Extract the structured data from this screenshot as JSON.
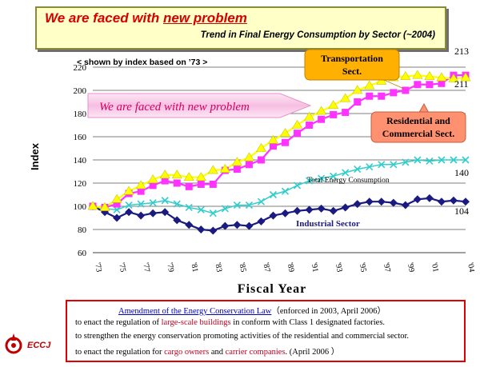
{
  "header": {
    "title_prefix": "We are faced with ",
    "title_underlined": "new problem",
    "subtitle": "Trend in Final Energy Consumption by Sector  (~2004)"
  },
  "chart_data": {
    "type": "line",
    "note": "< shown by index based on ’73 >",
    "xlabel": "Fiscal Year",
    "ylabel": "Index",
    "ylim": [
      60,
      220
    ],
    "yticks": [
      60,
      80,
      100,
      120,
      140,
      160,
      180,
      200,
      220
    ],
    "x": [
      1973,
      1974,
      1975,
      1976,
      1977,
      1978,
      1979,
      1980,
      1981,
      1982,
      1983,
      1984,
      1985,
      1986,
      1987,
      1988,
      1989,
      1990,
      1991,
      1992,
      1993,
      1994,
      1995,
      1996,
      1997,
      1998,
      1999,
      2000,
      2001,
      2002,
      2003,
      2004
    ],
    "xticks": [
      "'73",
      "'75",
      "'77",
      "'79",
      "'81",
      "'83",
      "'85",
      "'87",
      "'89",
      "'91",
      "'93",
      "'95",
      "'97",
      "'99",
      "'01",
      "'04"
    ],
    "grid": true,
    "series": [
      {
        "name": "Transportation Sect.",
        "color": "#ffff00",
        "marker": "triangle",
        "values": [
          100,
          99,
          106,
          113,
          118,
          123,
          127,
          127,
          125,
          125,
          131,
          132,
          138,
          142,
          150,
          157,
          163,
          170,
          177,
          182,
          187,
          193,
          200,
          204,
          208,
          211,
          212,
          213,
          212,
          211,
          210,
          211
        ]
      },
      {
        "name": "Residential and Commercial Sect.",
        "color": "#ff33ff",
        "marker": "square",
        "values": [
          100,
          99,
          102,
          111,
          113,
          118,
          122,
          120,
          117,
          119,
          119,
          131,
          132,
          136,
          140,
          152,
          155,
          163,
          170,
          175,
          179,
          181,
          190,
          195,
          195,
          198,
          200,
          205,
          205,
          206,
          213,
          213
        ]
      },
      {
        "name": "Total Energy Consumption",
        "color": "#33cccc",
        "marker": "cross",
        "values": [
          100,
          98,
          97,
          101,
          102,
          103,
          105,
          102,
          99,
          97,
          94,
          98,
          101,
          101,
          104,
          110,
          113,
          118,
          122,
          124,
          126,
          129,
          132,
          134,
          136,
          136,
          138,
          140,
          139,
          140,
          140,
          140
        ]
      },
      {
        "name": "Industrial Sector",
        "color": "#1a1a80",
        "marker": "diamond",
        "values": [
          100,
          95,
          90,
          95,
          92,
          94,
          95,
          88,
          84,
          80,
          79,
          83,
          84,
          83,
          87,
          92,
          94,
          96,
          97,
          98,
          96,
          99,
          102,
          104,
          104,
          103,
          101,
          106,
          107,
          104,
          105,
          104
        ]
      }
    ],
    "end_labels": [
      "213",
      "211",
      "140",
      "104"
    ],
    "annotations": {
      "arrow_text": "We are faced with new problem",
      "transport_callout": "Transportation\nSect.",
      "residential_callout": "Residential and\nCommercial Sect.",
      "total_label": "Total Energy Consumption",
      "industrial_label": "Industrial Sector"
    },
    "colors": {
      "arrow_fill": "#f8c8e8",
      "arrow_text": "#d80060",
      "callout_orange": "#ffb000",
      "callout_salmon": "#ff9070",
      "industrial_text": "#1a1a80"
    }
  },
  "notes": {
    "line1_link": "Amendment of the Energy Conservation Law",
    "line1_rest": "（enforced in 2003, April 2006）",
    "line2_pre": "to enact the regulation of  ",
    "line2_red": "large-scale buildings",
    "line2_post": " in conform with Class 1 designated factories.",
    "line3": "to strengthen the energy conservation promoting activities of the residential and commercial sector.",
    "line4_pre": "to enact the regulation for ",
    "line4_red1": "cargo owners",
    "line4_mid": " and ",
    "line4_red2": "carrier companies",
    "line4_post": ". (April 2006 ）"
  },
  "logo": {
    "text": "ECCJ",
    "icon": "eccj-logo-icon"
  }
}
